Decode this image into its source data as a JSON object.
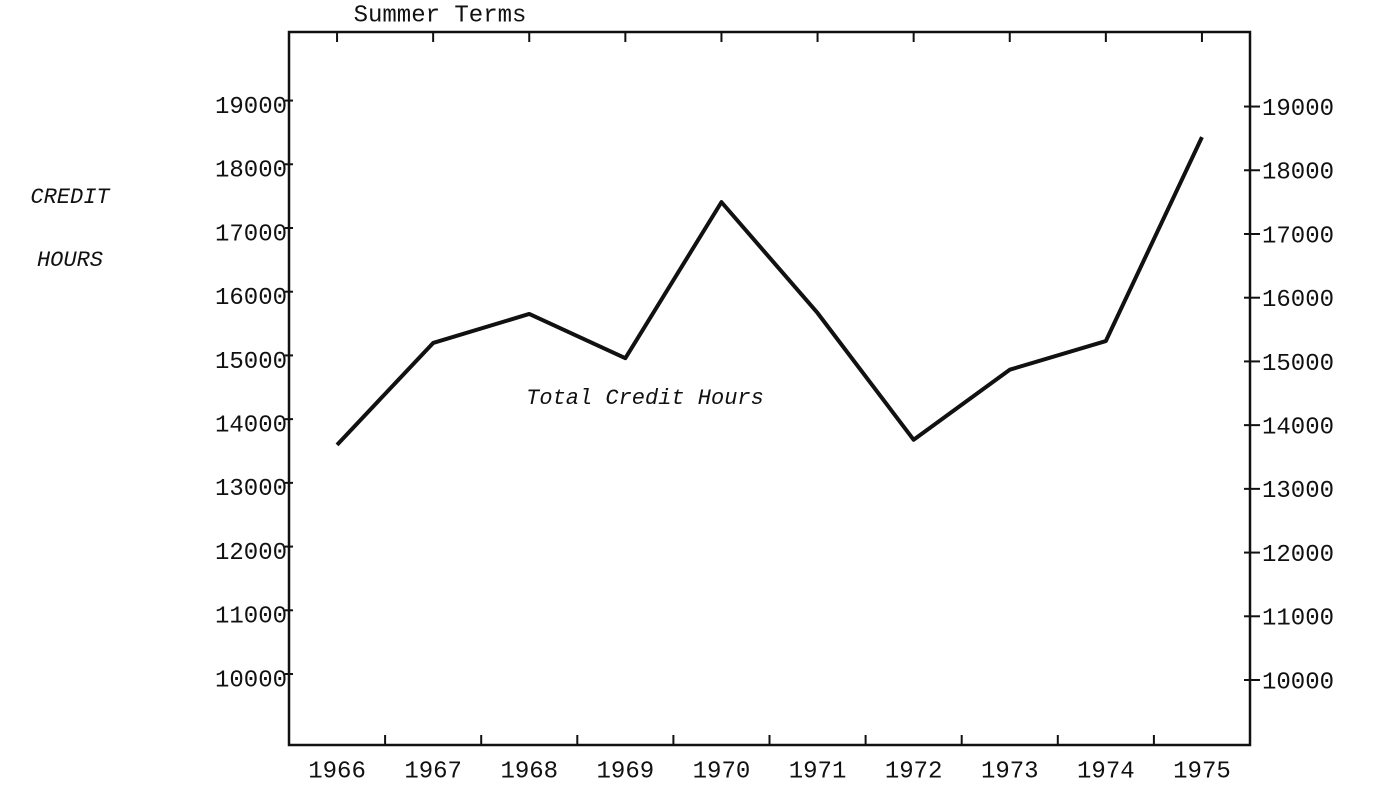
{
  "chart_data": {
    "type": "line",
    "title": "Summer Terms",
    "ylabel": [
      "CREDIT",
      "HOURS"
    ],
    "annotation": "Total Credit Hours",
    "categories": [
      "1966",
      "1967",
      "1968",
      "1969",
      "1970",
      "1971",
      "1972",
      "1973",
      "1974",
      "1975"
    ],
    "series": [
      {
        "name": "Total Credit Hours",
        "color": "#111111",
        "values": [
          13690,
          15290,
          15745,
          15050,
          17500,
          15760,
          13770,
          14870,
          15320,
          18520
        ]
      }
    ],
    "ylim": [
      8980,
      20170
    ],
    "yticks": [
      10000,
      11000,
      12000,
      13000,
      14000,
      15000,
      16000,
      17000,
      18000,
      19000
    ],
    "y2lim": [
      8980,
      20170
    ],
    "y2ticks": [
      10000,
      11000,
      12000,
      13000,
      14000,
      15000,
      16000,
      17000,
      18000,
      19000
    ]
  }
}
